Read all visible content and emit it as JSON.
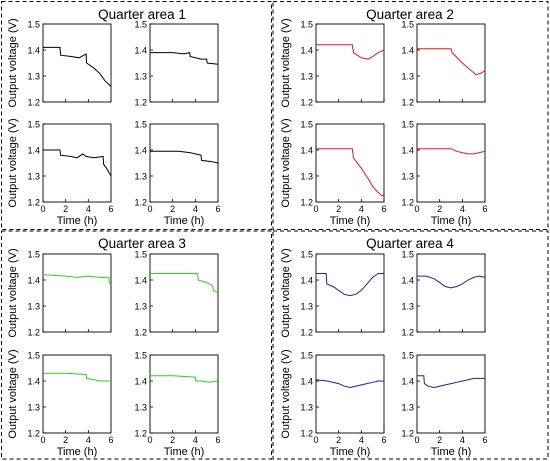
{
  "figure": {
    "ylabel": "Output voltage (V)",
    "xlabel": "Time (h)",
    "x_ticks": [
      "0",
      "2",
      "4",
      "6"
    ],
    "y_ticks": [
      "1.2",
      "1.3",
      "1.4",
      "1.5"
    ],
    "quarters": [
      {
        "title": "Quarter area 1",
        "color": "#000000"
      },
      {
        "title": "Quarter area 2",
        "color": "#e8181c"
      },
      {
        "title": "Quarter area 3",
        "color": "#2fd21e"
      },
      {
        "title": "Quarter area 4",
        "color": "#1f1fb8"
      }
    ]
  },
  "chart_data": [
    {
      "type": "line",
      "title": "Quarter area 1",
      "xlabel": "Time (h)",
      "ylabel": "Output voltage (V)",
      "xlim": [
        0,
        6
      ],
      "ylim": [
        1.2,
        1.5
      ],
      "color": "#000000",
      "series": [
        {
          "x": [
            0,
            1.5,
            1.55,
            2.5,
            3.2,
            3.6,
            3.8,
            3.85,
            4.5,
            5.0,
            5.5,
            6.0
          ],
          "y": [
            1.41,
            1.41,
            1.38,
            1.375,
            1.37,
            1.38,
            1.385,
            1.35,
            1.33,
            1.31,
            1.28,
            1.26
          ]
        },
        {
          "x": [
            0,
            2.0,
            3.0,
            3.5,
            3.55,
            4.5,
            5.0,
            5.05,
            6.0
          ],
          "y": [
            1.39,
            1.39,
            1.385,
            1.39,
            1.375,
            1.365,
            1.365,
            1.35,
            1.345
          ]
        }
      ]
    },
    {
      "type": "line",
      "title": "Quarter area 1",
      "xlabel": "Time (h)",
      "ylabel": "Output voltage (V)",
      "xlim": [
        0,
        6
      ],
      "ylim": [
        1.2,
        1.5
      ],
      "color": "#000000",
      "series": [
        {
          "x": [
            0,
            1.5,
            1.55,
            2.5,
            3.0,
            3.5,
            3.8,
            4.5,
            5.3,
            5.35,
            5.6,
            6.0
          ],
          "y": [
            1.4,
            1.4,
            1.38,
            1.375,
            1.37,
            1.385,
            1.375,
            1.37,
            1.375,
            1.345,
            1.33,
            1.3
          ]
        },
        {
          "x": [
            0,
            2.5,
            3.5,
            4.5,
            4.55,
            5.5,
            6.0
          ],
          "y": [
            1.395,
            1.395,
            1.39,
            1.38,
            1.36,
            1.355,
            1.35
          ]
        }
      ]
    },
    {
      "type": "line",
      "title": "Quarter area 2",
      "xlabel": "Time (h)",
      "ylabel": "Output voltage (V)",
      "xlim": [
        0,
        6
      ],
      "ylim": [
        1.2,
        1.5
      ],
      "color": "#e8181c",
      "series": [
        {
          "x": [
            0,
            3.2,
            3.3,
            4.0,
            4.6,
            5.0,
            5.5,
            6.0
          ],
          "y": [
            1.42,
            1.42,
            1.39,
            1.37,
            1.365,
            1.375,
            1.39,
            1.4
          ]
        },
        {
          "x": [
            0,
            3.0,
            3.1,
            4.0,
            4.8,
            5.2,
            5.6,
            6.0
          ],
          "y": [
            1.405,
            1.405,
            1.39,
            1.35,
            1.32,
            1.305,
            1.31,
            1.32
          ]
        }
      ]
    },
    {
      "type": "line",
      "title": "Quarter area 2",
      "xlabel": "Time (h)",
      "ylabel": "Output voltage (V)",
      "xlim": [
        0,
        6
      ],
      "ylim": [
        1.2,
        1.5
      ],
      "color": "#e8181c",
      "series": [
        {
          "x": [
            0,
            3.2,
            3.3,
            4.0,
            4.6,
            5.0,
            5.4,
            5.8,
            6.0
          ],
          "y": [
            1.405,
            1.405,
            1.37,
            1.33,
            1.29,
            1.26,
            1.24,
            1.225,
            1.225
          ]
        },
        {
          "x": [
            0,
            3.0,
            3.5,
            4.0,
            4.5,
            5.0,
            5.5,
            6.0
          ],
          "y": [
            1.405,
            1.405,
            1.395,
            1.39,
            1.385,
            1.385,
            1.39,
            1.395
          ]
        }
      ]
    },
    {
      "type": "line",
      "title": "Quarter area 3",
      "xlabel": "Time (h)",
      "ylabel": "Output voltage (V)",
      "xlim": [
        0,
        6
      ],
      "ylim": [
        1.2,
        1.5
      ],
      "color": "#2fd21e",
      "series": [
        {
          "x": [
            0,
            2.0,
            3.0,
            4.0,
            5.0,
            5.8,
            5.85,
            6.0
          ],
          "y": [
            1.42,
            1.415,
            1.41,
            1.415,
            1.41,
            1.41,
            1.39,
            1.38
          ]
        },
        {
          "x": [
            0,
            2.0,
            4.2,
            4.25,
            5.0,
            5.5,
            5.6,
            6.0
          ],
          "y": [
            1.425,
            1.425,
            1.425,
            1.4,
            1.39,
            1.38,
            1.36,
            1.35
          ]
        }
      ]
    },
    {
      "type": "line",
      "title": "Quarter area 3",
      "xlabel": "Time (h)",
      "ylabel": "Output voltage (V)",
      "xlim": [
        0,
        6
      ],
      "ylim": [
        1.2,
        1.5
      ],
      "color": "#2fd21e",
      "series": [
        {
          "x": [
            0,
            2.0,
            3.8,
            3.85,
            4.5,
            5.0,
            6.0
          ],
          "y": [
            1.43,
            1.43,
            1.425,
            1.41,
            1.405,
            1.4,
            1.4
          ]
        },
        {
          "x": [
            0,
            2.0,
            4.0,
            4.05,
            4.5,
            5.2,
            6.0
          ],
          "y": [
            1.42,
            1.42,
            1.415,
            1.4,
            1.4,
            1.395,
            1.4
          ]
        }
      ]
    },
    {
      "type": "line",
      "title": "Quarter area 4",
      "xlabel": "Time (h)",
      "ylabel": "Output voltage (V)",
      "xlim": [
        0,
        6
      ],
      "ylim": [
        1.2,
        1.5
      ],
      "color": "#1f1fb8",
      "series": [
        {
          "x": [
            0,
            0.9,
            0.95,
            1.5,
            2.0,
            2.5,
            3.0,
            3.5,
            4.0,
            4.5,
            5.0,
            5.5,
            6.0
          ],
          "y": [
            1.425,
            1.425,
            1.385,
            1.375,
            1.36,
            1.345,
            1.34,
            1.345,
            1.36,
            1.385,
            1.41,
            1.425,
            1.425
          ]
        },
        {
          "x": [
            0,
            0.8,
            1.5,
            2.0,
            2.5,
            3.0,
            3.5,
            4.0,
            4.5,
            5.0,
            5.5,
            6.0
          ],
          "y": [
            1.415,
            1.415,
            1.405,
            1.39,
            1.375,
            1.37,
            1.375,
            1.385,
            1.4,
            1.41,
            1.415,
            1.41
          ]
        }
      ]
    },
    {
      "type": "line",
      "title": "Quarter area 4",
      "xlabel": "Time (h)",
      "ylabel": "Output voltage (V)",
      "xlim": [
        0,
        6
      ],
      "ylim": [
        1.2,
        1.5
      ],
      "color": "#1f1fb8",
      "series": [
        {
          "x": [
            0,
            1.0,
            2.0,
            2.5,
            3.0,
            3.5,
            4.0,
            4.5,
            5.0,
            5.5,
            6.0
          ],
          "y": [
            1.405,
            1.4,
            1.39,
            1.38,
            1.375,
            1.38,
            1.385,
            1.39,
            1.395,
            1.4,
            1.4
          ]
        },
        {
          "x": [
            0,
            0.6,
            0.65,
            1.0,
            1.5,
            2.0,
            2.5,
            3.0,
            3.5,
            4.0,
            4.5,
            5.0,
            5.5,
            6.0
          ],
          "y": [
            1.42,
            1.42,
            1.39,
            1.38,
            1.375,
            1.38,
            1.385,
            1.39,
            1.395,
            1.4,
            1.405,
            1.41,
            1.41,
            1.41
          ]
        }
      ]
    }
  ]
}
